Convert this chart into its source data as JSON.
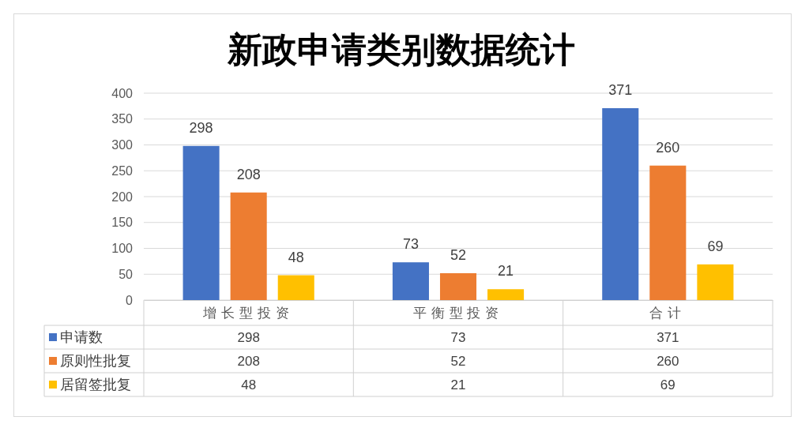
{
  "chart_data": {
    "type": "bar",
    "title": "新政申请类别数据统计",
    "categories": [
      "增长型投资",
      "平衡型投资",
      "合计"
    ],
    "series": [
      {
        "name": "申请数",
        "color": "#4472c4",
        "values": [
          298,
          73,
          371
        ]
      },
      {
        "name": "原则性批复",
        "color": "#ed7d31",
        "values": [
          208,
          52,
          260
        ]
      },
      {
        "name": "居留签批复",
        "color": "#ffc000",
        "values": [
          48,
          21,
          69
        ]
      }
    ],
    "ylim": [
      0,
      400
    ],
    "yticks": [
      0,
      50,
      100,
      150,
      200,
      250,
      300,
      350,
      400
    ],
    "grid": "y",
    "legend": "bottom",
    "data_labels": true,
    "annotations": [
      "298",
      "73",
      "371",
      "208",
      "52",
      "260",
      "48",
      "21",
      "69"
    ]
  }
}
